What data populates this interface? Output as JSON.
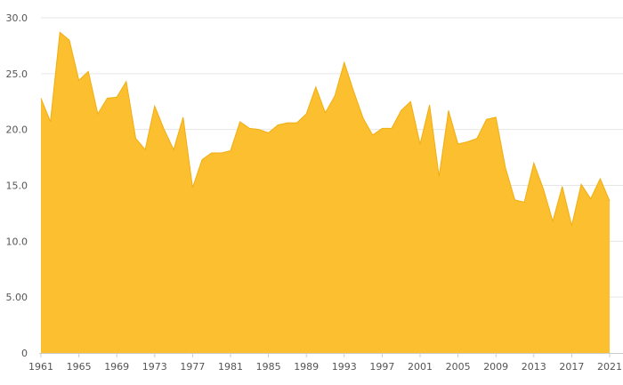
{
  "chart_data": {
    "type": "area",
    "title": "",
    "xlabel": "",
    "ylabel": "",
    "x": [
      1961,
      1962,
      1963,
      1964,
      1965,
      1966,
      1967,
      1968,
      1969,
      1970,
      1971,
      1972,
      1973,
      1974,
      1975,
      1976,
      1977,
      1978,
      1979,
      1980,
      1981,
      1982,
      1983,
      1984,
      1985,
      1986,
      1987,
      1988,
      1989,
      1990,
      1991,
      1992,
      1993,
      1994,
      1995,
      1996,
      1997,
      1998,
      1999,
      2000,
      2001,
      2002,
      2003,
      2004,
      2005,
      2006,
      2007,
      2008,
      2009,
      2010,
      2011,
      2012,
      2013,
      2014,
      2015,
      2016,
      2017,
      2018,
      2019,
      2020,
      2021
    ],
    "series": [
      {
        "values": [
          22.8,
          20.7,
          28.7,
          28.0,
          24.4,
          25.2,
          21.4,
          22.8,
          22.9,
          24.3,
          19.2,
          18.2,
          22.1,
          20.0,
          18.2,
          21.1,
          14.8,
          17.3,
          17.9,
          17.9,
          18.1,
          20.7,
          20.1,
          20.0,
          19.7,
          20.4,
          20.6,
          20.6,
          21.4,
          23.8,
          21.5,
          23.0,
          26.0,
          23.4,
          21.0,
          19.5,
          20.1,
          20.1,
          21.7,
          22.5,
          18.7,
          22.2,
          15.8,
          21.7,
          18.7,
          18.9,
          19.2,
          20.9,
          21.1,
          16.6,
          13.7,
          13.5,
          17.0,
          14.7,
          11.8,
          14.9,
          11.4,
          15.1,
          13.8,
          15.6,
          13.6
        ]
      }
    ],
    "xticks": [
      "1961",
      "1965",
      "1969",
      "1973",
      "1977",
      "1981",
      "1985",
      "1989",
      "1993",
      "1997",
      "2001",
      "2005",
      "2009",
      "2013",
      "2017",
      "2021"
    ],
    "yticks": [
      "0",
      "5.00",
      "10.0",
      "15.0",
      "20.0",
      "25.0",
      "30.0"
    ],
    "ylim": [
      0,
      30
    ],
    "xlim": [
      1961,
      2021
    ],
    "grid": true,
    "legend": "none",
    "colors": {
      "fill": "#fbbf2f",
      "stroke": "#f0ae10"
    }
  }
}
